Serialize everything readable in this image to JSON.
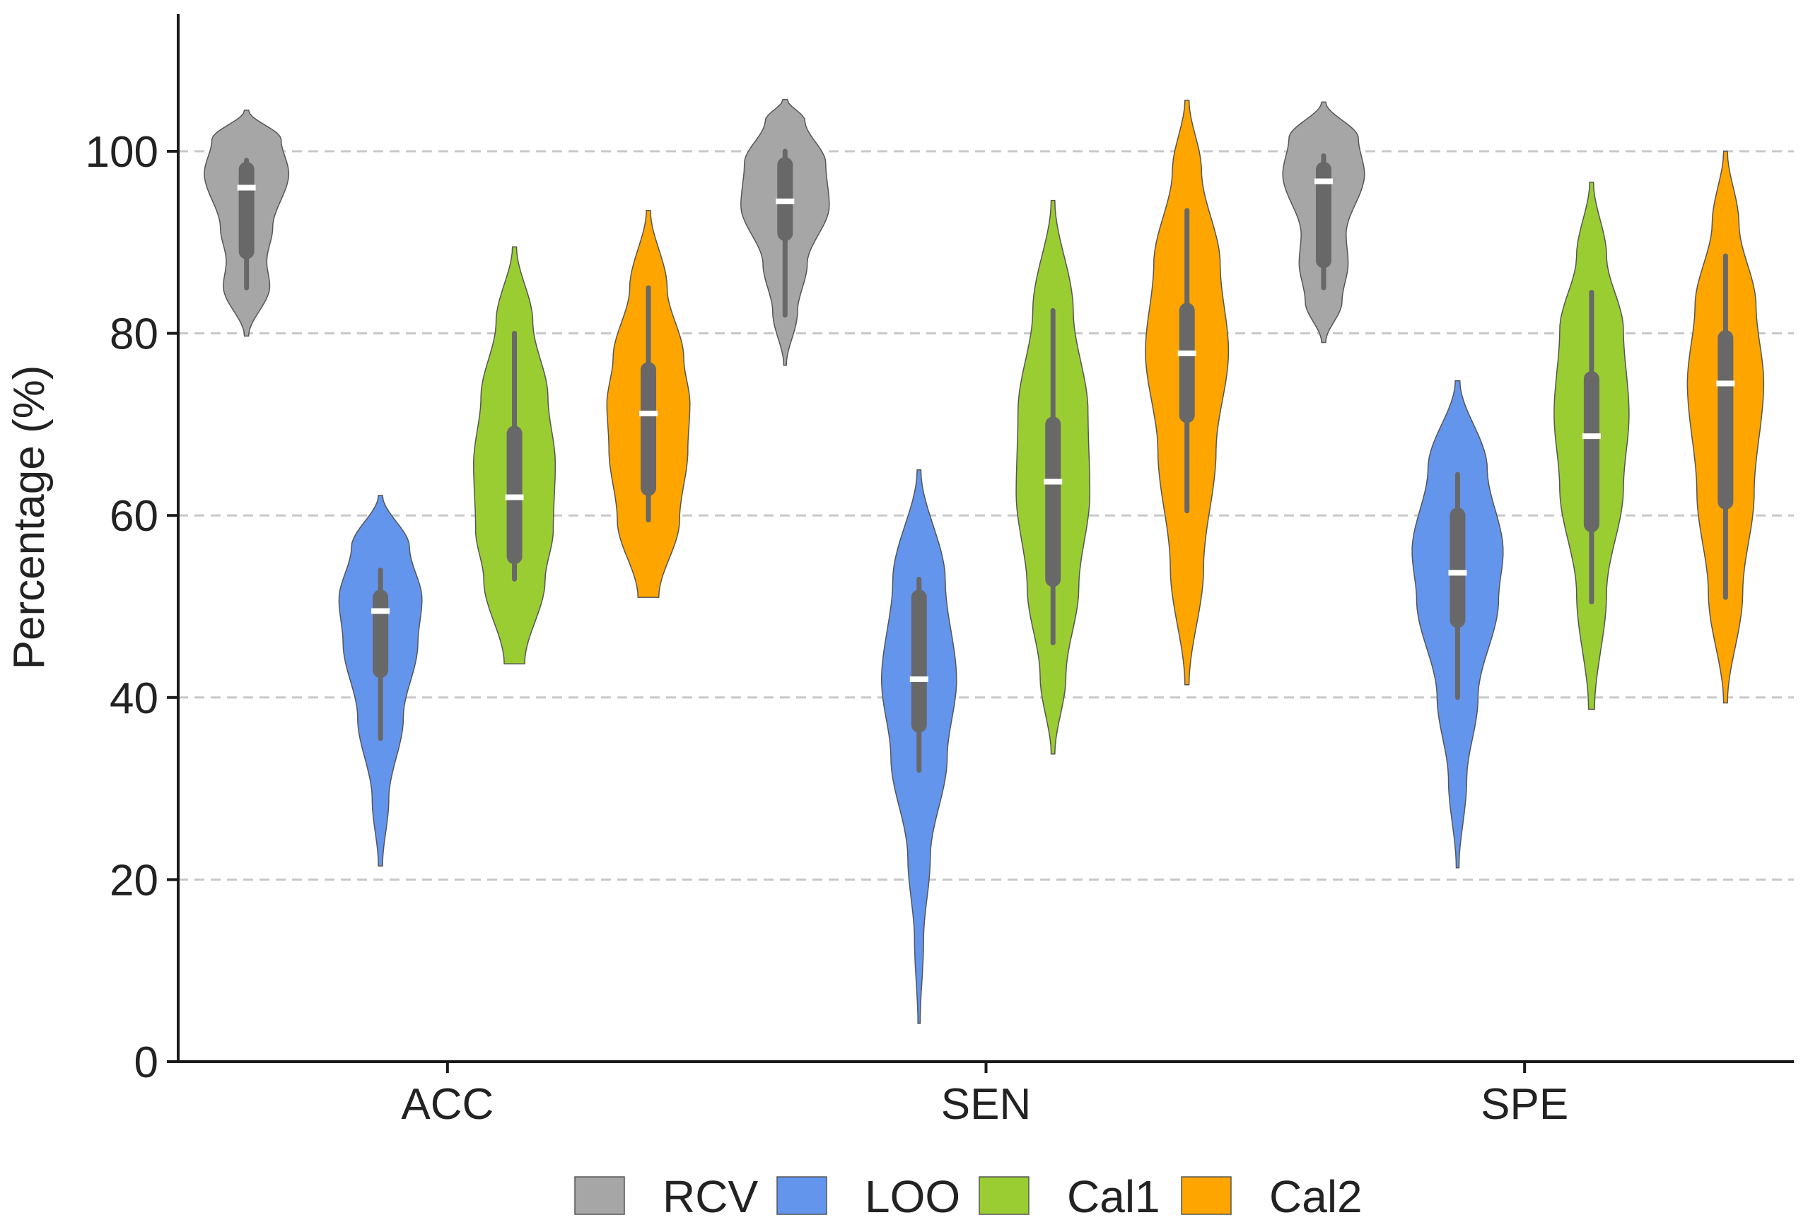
{
  "chart_data": {
    "type": "violin",
    "title": "",
    "xlabel": "",
    "ylabel": "Percentage (%)",
    "ylim": [
      0,
      115
    ],
    "yticks": [
      0,
      20,
      40,
      60,
      80,
      100
    ],
    "ytick_labels": [
      "0",
      "20",
      "40",
      "60",
      "80",
      "100"
    ],
    "grid": "horizontal dashed",
    "legend_position": "bottom-center",
    "categories": [
      "ACC",
      "SEN",
      "SPE"
    ],
    "series": [
      {
        "name": "RCV",
        "color": "#a6a6a6",
        "distributions": [
          {
            "min": 79.7,
            "max": 104.5,
            "whisker_low": 85,
            "whisker_high": 99,
            "q1": 89,
            "q3": 98,
            "median": 96,
            "width": 0.63,
            "profile": [
              [
                0,
                0.05
              ],
              [
                0.22,
                0.55
              ],
              [
                0.33,
                0.48
              ],
              [
                0.48,
                0.62
              ],
              [
                0.72,
                1.0
              ],
              [
                0.87,
                0.82
              ],
              [
                1,
                0.05
              ]
            ]
          },
          {
            "min": 76.5,
            "max": 105.7,
            "whisker_low": 82,
            "whisker_high": 100,
            "q1": 91,
            "q3": 98.5,
            "median": 94.5,
            "width": 0.66,
            "profile": [
              [
                0,
                0.03
              ],
              [
                0.2,
                0.28
              ],
              [
                0.38,
                0.5
              ],
              [
                0.6,
                1.0
              ],
              [
                0.76,
                0.92
              ],
              [
                0.92,
                0.45
              ],
              [
                1,
                0.05
              ]
            ]
          },
          {
            "min": 79,
            "max": 105.4,
            "whisker_low": 85,
            "whisker_high": 99.5,
            "q1": 88,
            "q3": 98,
            "median": 96.7,
            "width": 0.61,
            "profile": [
              [
                0,
                0.05
              ],
              [
                0.17,
                0.45
              ],
              [
                0.33,
                0.6
              ],
              [
                0.45,
                0.55
              ],
              [
                0.7,
                1.0
              ],
              [
                0.85,
                0.85
              ],
              [
                1,
                0.05
              ]
            ]
          }
        ]
      },
      {
        "name": "LOO",
        "color": "#6495ed",
        "distributions": [
          {
            "min": 21.5,
            "max": 62.2,
            "whisker_low": 35.5,
            "whisker_high": 54,
            "q1": 43,
            "q3": 51,
            "median": 49.5,
            "width": 0.62,
            "profile": [
              [
                0,
                0.05
              ],
              [
                0.18,
                0.2
              ],
              [
                0.4,
                0.55
              ],
              [
                0.6,
                0.9
              ],
              [
                0.72,
                1.0
              ],
              [
                0.86,
                0.7
              ],
              [
                1,
                0.05
              ]
            ]
          },
          {
            "min": 4.2,
            "max": 65,
            "whisker_low": 32,
            "whisker_high": 53,
            "q1": 37,
            "q3": 51,
            "median": 42,
            "width": 0.56,
            "profile": [
              [
                0,
                0.03
              ],
              [
                0.15,
                0.12
              ],
              [
                0.3,
                0.3
              ],
              [
                0.48,
                0.75
              ],
              [
                0.62,
                1.0
              ],
              [
                0.8,
                0.7
              ],
              [
                1,
                0.05
              ]
            ]
          },
          {
            "min": 21.3,
            "max": 74.8,
            "whisker_low": 40,
            "whisker_high": 64.5,
            "q1": 48.5,
            "q3": 60,
            "median": 53.7,
            "width": 0.68,
            "profile": [
              [
                0,
                0.03
              ],
              [
                0.18,
                0.2
              ],
              [
                0.35,
                0.45
              ],
              [
                0.55,
                0.9
              ],
              [
                0.65,
                1.0
              ],
              [
                0.82,
                0.65
              ],
              [
                1,
                0.05
              ]
            ]
          }
        ]
      },
      {
        "name": "Cal1",
        "color": "#9acd32",
        "distributions": [
          {
            "min": 43.7,
            "max": 89.5,
            "whisker_low": 53,
            "whisker_high": 80,
            "q1": 55.5,
            "q3": 69,
            "median": 62,
            "width": 0.61,
            "profile": [
              [
                0,
                0.25
              ],
              [
                0.2,
                0.75
              ],
              [
                0.32,
                0.95
              ],
              [
                0.48,
                1.0
              ],
              [
                0.64,
                0.82
              ],
              [
                0.82,
                0.45
              ],
              [
                1,
                0.05
              ]
            ]
          },
          {
            "min": 33.8,
            "max": 94.6,
            "whisker_low": 46,
            "whisker_high": 82.5,
            "q1": 53,
            "q3": 70,
            "median": 63.7,
            "width": 0.55,
            "profile": [
              [
                0,
                0.05
              ],
              [
                0.14,
                0.35
              ],
              [
                0.3,
                0.7
              ],
              [
                0.47,
                1.0
              ],
              [
                0.62,
                0.95
              ],
              [
                0.8,
                0.55
              ],
              [
                1,
                0.05
              ]
            ]
          },
          {
            "min": 38.7,
            "max": 96.6,
            "whisker_low": 50.5,
            "whisker_high": 84.5,
            "q1": 59,
            "q3": 75,
            "median": 68.7,
            "width": 0.56,
            "profile": [
              [
                0,
                0.08
              ],
              [
                0.22,
                0.4
              ],
              [
                0.42,
                0.85
              ],
              [
                0.56,
                1.0
              ],
              [
                0.72,
                0.85
              ],
              [
                0.86,
                0.4
              ],
              [
                1,
                0.05
              ]
            ]
          }
        ]
      },
      {
        "name": "Cal2",
        "color": "#ffa500",
        "distributions": [
          {
            "min": 51,
            "max": 93.5,
            "whisker_low": 59.5,
            "whisker_high": 85,
            "q1": 63,
            "q3": 76,
            "median": 71.2,
            "width": 0.62,
            "profile": [
              [
                0,
                0.25
              ],
              [
                0.2,
                0.75
              ],
              [
                0.38,
                0.95
              ],
              [
                0.5,
                1.0
              ],
              [
                0.62,
                0.85
              ],
              [
                0.8,
                0.45
              ],
              [
                1,
                0.05
              ]
            ]
          },
          {
            "min": 41.4,
            "max": 105.6,
            "whisker_low": 60.5,
            "whisker_high": 93.5,
            "q1": 71,
            "q3": 82.5,
            "median": 77.8,
            "width": 0.62,
            "profile": [
              [
                0,
                0.05
              ],
              [
                0.2,
                0.4
              ],
              [
                0.4,
                0.7
              ],
              [
                0.57,
                1.0
              ],
              [
                0.72,
                0.8
              ],
              [
                0.88,
                0.35
              ],
              [
                1,
                0.05
              ]
            ]
          },
          {
            "min": 39.4,
            "max": 100,
            "whisker_low": 51,
            "whisker_high": 88.5,
            "q1": 61.5,
            "q3": 79.5,
            "median": 74.5,
            "width": 0.57,
            "profile": [
              [
                0,
                0.05
              ],
              [
                0.2,
                0.45
              ],
              [
                0.38,
                0.75
              ],
              [
                0.58,
                1.0
              ],
              [
                0.72,
                0.8
              ],
              [
                0.87,
                0.35
              ],
              [
                1,
                0.05
              ]
            ]
          }
        ]
      }
    ]
  }
}
